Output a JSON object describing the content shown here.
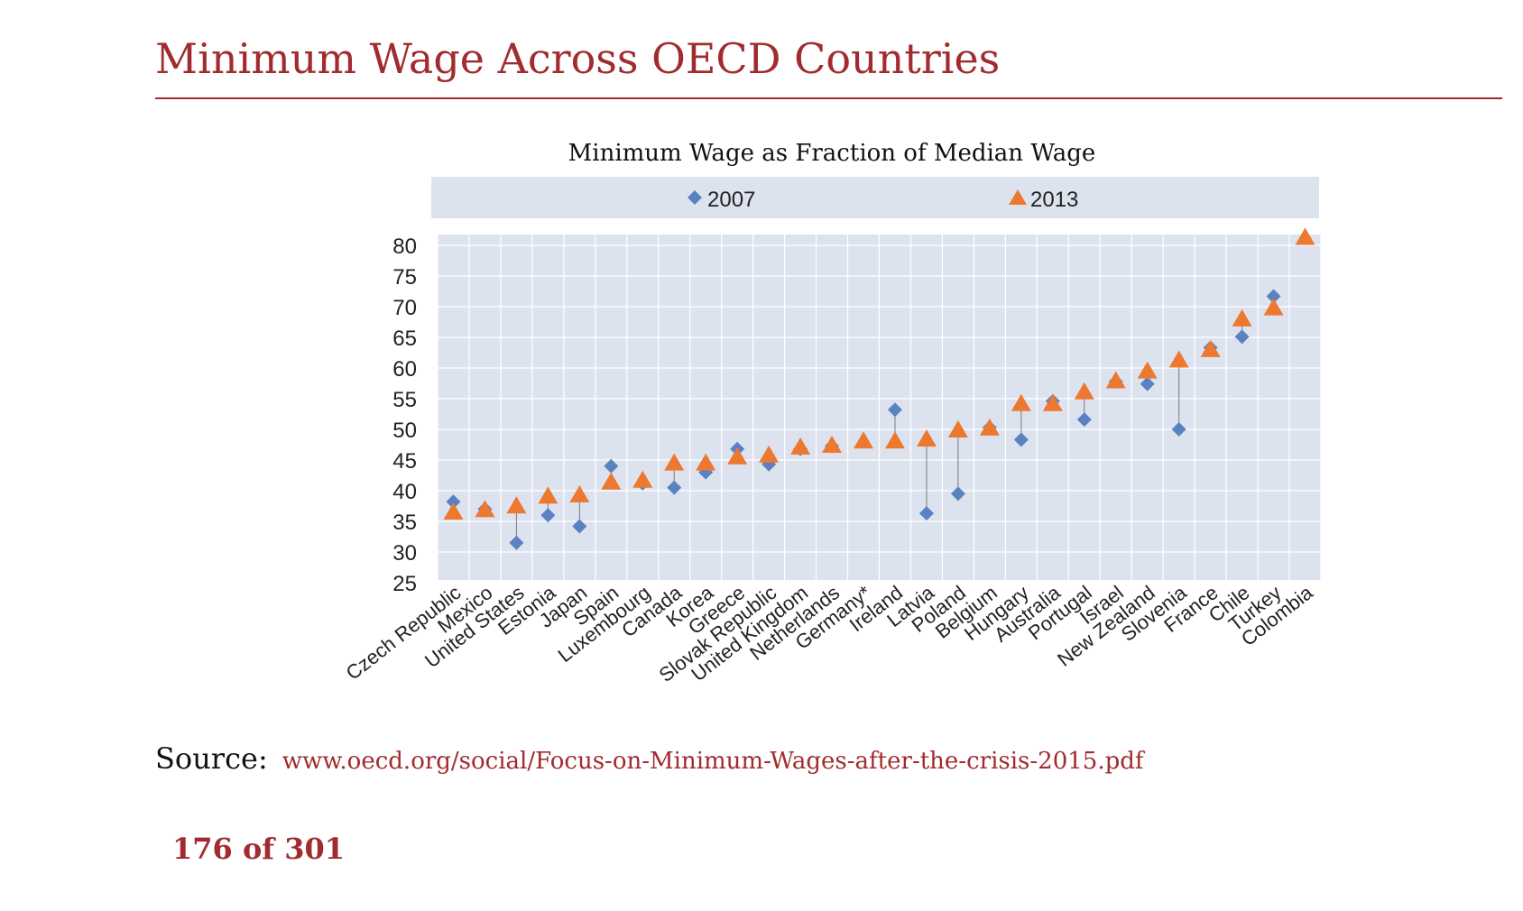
{
  "slide": {
    "title": "Minimum Wage Across OECD Countries",
    "source_label": "Source:",
    "source_link": "www.oecd.org/social/Focus-on-Minimum-Wages-after-the-crisis-2015.pdf",
    "page_number": "176 of 301"
  },
  "colors": {
    "accent": "#a22b2f",
    "series_2007": "#5b82c0",
    "series_2013": "#ed7830",
    "plot_background": "#dce3ef",
    "legend_background": "#dce3ef"
  },
  "chart_data": {
    "type": "scatter",
    "title": "Minimum Wage as Fraction of Median Wage",
    "xlabel": "",
    "ylabel": "",
    "ylim": [
      25,
      80
    ],
    "yticks": [
      80,
      75,
      70,
      65,
      60,
      55,
      50,
      45,
      40,
      35,
      30,
      25
    ],
    "grid": true,
    "legend_position": "top",
    "categories": [
      "Czech Republic",
      "Mexico",
      "United States",
      "Estonia",
      "Japan",
      "Spain",
      "Luxembourg",
      "Canada",
      "Korea",
      "Greece",
      "Slovak Republic",
      "United Kingdom",
      "Netherlands",
      "Germany*",
      "Ireland",
      "Latvia",
      "Poland",
      "Belgium",
      "Hungary",
      "Australia",
      "Portugal",
      "Israel",
      "New Zealand",
      "Slovenia",
      "France",
      "Chile",
      "Turkey",
      "Colombia"
    ],
    "series": [
      {
        "name": "2007",
        "marker": "diamond",
        "values": [
          38.2,
          37.0,
          31.5,
          36.0,
          34.2,
          44.0,
          41.2,
          40.5,
          43.0,
          46.8,
          44.3,
          46.8,
          47.3,
          null,
          53.2,
          36.3,
          39.5,
          50.3,
          48.3,
          54.6,
          51.6,
          57.8,
          57.4,
          50.0,
          63.3,
          65.1,
          71.7,
          null
        ]
      },
      {
        "name": "2013",
        "marker": "triangle",
        "values": [
          36.4,
          36.8,
          37.4,
          39.0,
          39.2,
          41.3,
          41.6,
          44.4,
          44.4,
          45.4,
          45.7,
          47.0,
          47.3,
          48.0,
          48.0,
          48.3,
          49.8,
          50.1,
          54.1,
          54.1,
          56.0,
          57.8,
          59.4,
          61.2,
          62.9,
          67.9,
          69.7,
          81.2
        ]
      }
    ]
  }
}
